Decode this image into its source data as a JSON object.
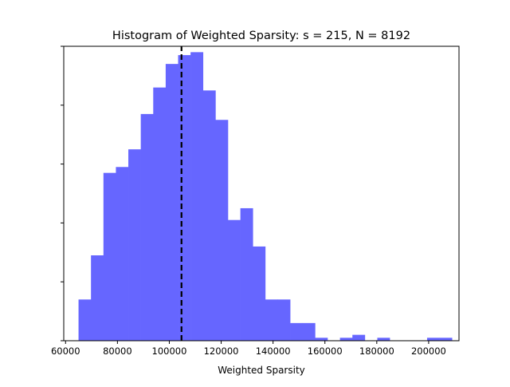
{
  "chart_data": {
    "type": "bar",
    "title": "Histogram of Weighted Sparsity: s = 215, N = 8192",
    "xlabel": "Weighted Sparsity",
    "ylabel": "",
    "xlim": [
      59300,
      211700
    ],
    "ylim": [
      0,
      1.0
    ],
    "x_ticks": [
      60000,
      80000,
      100000,
      120000,
      140000,
      160000,
      180000,
      200000
    ],
    "x_tick_labels": [
      "60000",
      "80000",
      "100000",
      "120000",
      "140000",
      "160000",
      "180000",
      "200000"
    ],
    "y_ticks": [
      0.0,
      0.2,
      0.4,
      0.6,
      0.8,
      1.0
    ],
    "y_tick_labels_shown": false,
    "bar_color": "#6666ff",
    "bin_edges": [
      65000,
      69800,
      74600,
      79400,
      84200,
      89000,
      93800,
      98600,
      103400,
      108200,
      113000,
      117800,
      122600,
      127400,
      132200,
      137000,
      141800,
      146600,
      151400,
      156200,
      161000,
      165800,
      170600,
      175400,
      180200,
      185000,
      189800,
      194600,
      199400,
      204200,
      209000
    ],
    "values": [
      0.14,
      0.29,
      0.57,
      0.59,
      0.65,
      0.77,
      0.86,
      0.94,
      0.97,
      0.98,
      0.85,
      0.75,
      0.41,
      0.45,
      0.32,
      0.14,
      0.14,
      0.06,
      0.06,
      0.01,
      0.0,
      0.01,
      0.02,
      0.0,
      0.01,
      0.0,
      0.0,
      0.0,
      0.01,
      0.01
    ],
    "vline": {
      "x": 104700,
      "style": "dashed",
      "color": "#000000"
    },
    "grid": false,
    "legend": "none"
  }
}
